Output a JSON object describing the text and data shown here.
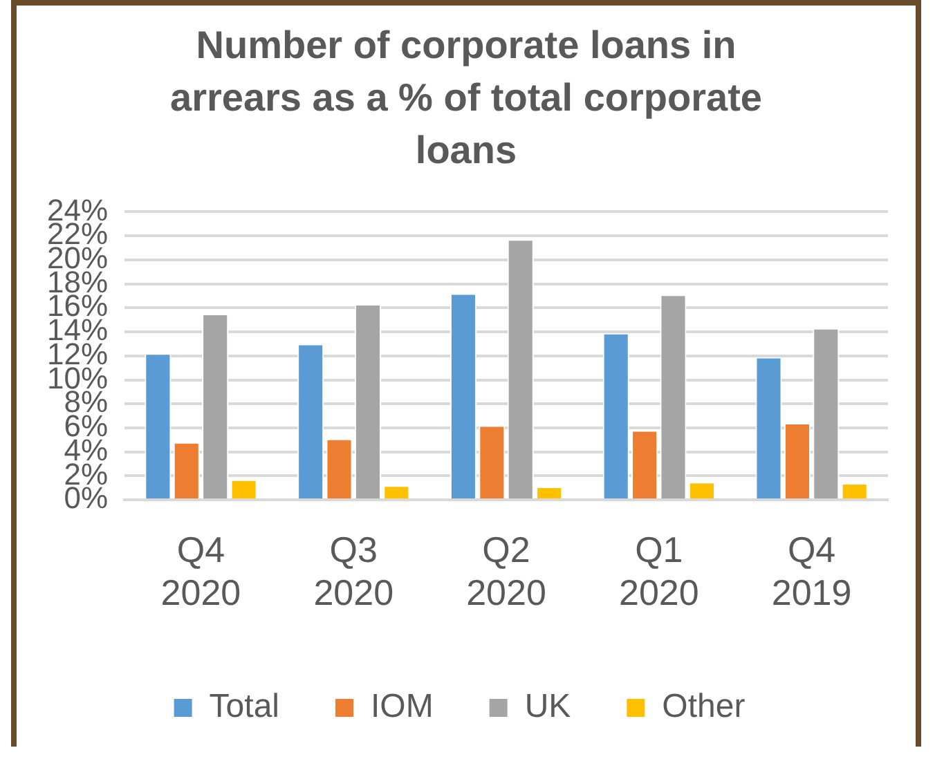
{
  "chart_data": {
    "type": "bar",
    "title": "Number of corporate loans in arrears as a % of total corporate loans",
    "categories": [
      "Q4 2020",
      "Q3 2020",
      "Q2 2020",
      "Q1 2020",
      "Q4 2019"
    ],
    "series": [
      {
        "name": "Total",
        "color": "#5b9bd5",
        "values": [
          12.2,
          13.0,
          17.2,
          13.9,
          11.9
        ]
      },
      {
        "name": "IOM",
        "color": "#ed7d31",
        "values": [
          4.8,
          5.1,
          6.2,
          5.8,
          6.4
        ]
      },
      {
        "name": "UK",
        "color": "#a5a5a5",
        "values": [
          15.5,
          16.3,
          21.7,
          17.1,
          14.3
        ]
      },
      {
        "name": "Other",
        "color": "#ffc000",
        "values": [
          1.7,
          1.2,
          1.1,
          1.5,
          1.4
        ]
      }
    ],
    "ylim": [
      0,
      24
    ],
    "yticks": [
      {
        "value": 0,
        "label": "0%"
      },
      {
        "value": 2,
        "label": "2%"
      },
      {
        "value": 4,
        "label": "4%"
      },
      {
        "value": 6,
        "label": "6%"
      },
      {
        "value": 8,
        "label": "8%"
      },
      {
        "value": 10,
        "label": "10%"
      },
      {
        "value": 12,
        "label": "12%"
      },
      {
        "value": 14,
        "label": "14%"
      },
      {
        "value": 16,
        "label": "16%"
      },
      {
        "value": 18,
        "label": "18%"
      },
      {
        "value": 20,
        "label": "20%"
      },
      {
        "value": 22,
        "label": "22%"
      },
      {
        "value": 24,
        "label": "24%"
      }
    ],
    "grid": "y",
    "legend": "bottom"
  }
}
